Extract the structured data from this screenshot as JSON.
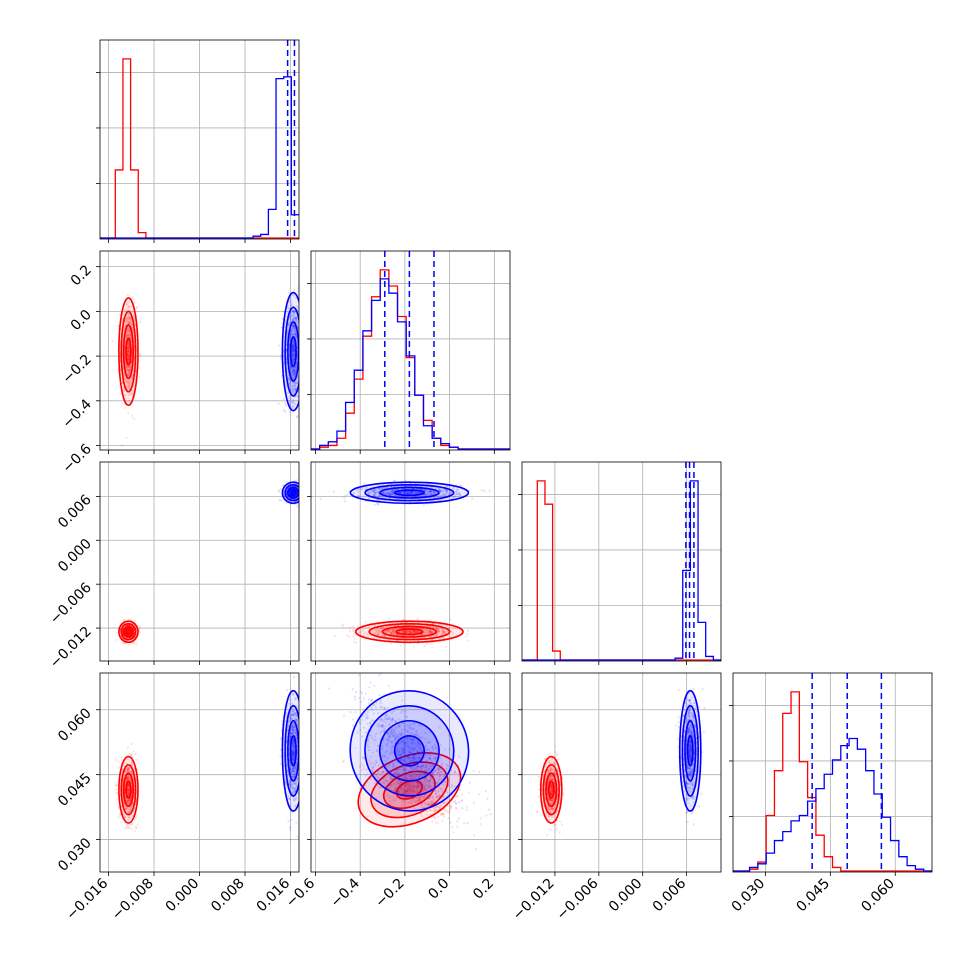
{
  "chart_data": {
    "type": "corner",
    "colors": {
      "series_a": "#ff0000",
      "series_b": "#0000ff",
      "grid": "#b0b0b0"
    },
    "params": [
      {
        "id": "p1",
        "range": [
          -0.0175,
          0.0175
        ],
        "ticks": [
          -0.016,
          -0.008,
          0.0,
          0.008,
          0.016
        ],
        "tick_labels": [
          "−0.016",
          "−0.008",
          "0.000",
          "0.008",
          "0.016"
        ]
      },
      {
        "id": "p2",
        "range": [
          -0.62,
          0.27
        ],
        "ticks": [
          -0.6,
          -0.4,
          -0.2,
          0.0,
          0.2
        ],
        "tick_labels": [
          "−0.6",
          "−0.4",
          "−0.2",
          "0.0",
          "0.2"
        ]
      },
      {
        "id": "p3",
        "range": [
          -0.0165,
          0.0107
        ],
        "ticks": [
          -0.012,
          -0.006,
          0.0,
          0.006
        ],
        "tick_labels": [
          "−0.012",
          "−0.006",
          "0.000",
          "0.006"
        ]
      },
      {
        "id": "p4",
        "range": [
          0.0225,
          0.0685
        ],
        "ticks": [
          0.03,
          0.045,
          0.06
        ],
        "tick_labels": [
          "0.030",
          "0.045",
          "0.060"
        ]
      }
    ],
    "series": [
      {
        "name": "",
        "color": "#ff0000",
        "center": [
          -0.0125,
          -0.18,
          -0.0125,
          0.0415
        ],
        "sd": [
          0.0007,
          0.1,
          0.0006,
          0.0032
        ]
      },
      {
        "name": "",
        "color": "#0000ff",
        "center": [
          0.0165,
          -0.18,
          0.0065,
          0.0505
        ],
        "sd": [
          0.0008,
          0.11,
          0.0006,
          0.0058
        ]
      }
    ],
    "hist1d": [
      {
        "param": "p1",
        "bins": [
          -0.0175,
          0.0175,
          26
        ],
        "series": [
          {
            "color": "#ff0000",
            "counts": [
              0,
              0,
              0.38,
              1,
              0.38,
              0.03,
              0,
              0,
              0,
              0,
              0,
              0,
              0,
              0,
              0,
              0,
              0,
              0,
              0,
              0,
              0,
              0,
              0,
              0,
              0,
              0
            ]
          },
          {
            "color": "#0000ff",
            "counts": [
              0,
              0,
              0,
              0,
              0,
              0,
              0,
              0,
              0,
              0,
              0,
              0,
              0,
              0,
              0,
              0,
              0,
              0,
              0,
              0,
              0.01,
              0.02,
              0.16,
              0.89,
              0.9,
              0.13
            ]
          }
        ],
        "quantile_lines": [
          0.0155,
          0.0167,
          0.0179
        ]
      },
      {
        "param": "p2",
        "bins": [
          -0.62,
          0.27,
          23
        ],
        "series": [
          {
            "color": "#ff0000",
            "counts": [
              0,
              0.01,
              0.02,
              0.06,
              0.2,
              0.39,
              0.63,
              0.85,
              1,
              0.91,
              0.74,
              0.51,
              0.3,
              0.16,
              0.06,
              0.02,
              0.01,
              0,
              0,
              0,
              0,
              0,
              0
            ]
          },
          {
            "color": "#0000ff",
            "counts": [
              0,
              0.02,
              0.04,
              0.1,
              0.26,
              0.44,
              0.66,
              0.83,
              0.95,
              0.87,
              0.71,
              0.52,
              0.3,
              0.13,
              0.06,
              0.03,
              0.01,
              0,
              0,
              0,
              0,
              0,
              0
            ]
          }
        ],
        "quantile_lines": [
          -0.29,
          -0.18,
          -0.07
        ]
      },
      {
        "param": "p3",
        "bins": [
          -0.0165,
          0.0107,
          26
        ],
        "series": [
          {
            "color": "#ff0000",
            "counts": [
              0,
              0,
              1,
              0.87,
              0.05,
              0,
              0,
              0,
              0,
              0,
              0,
              0,
              0,
              0,
              0,
              0,
              0,
              0,
              0,
              0,
              0,
              0,
              0,
              0,
              0,
              0
            ]
          },
          {
            "color": "#0000ff",
            "counts": [
              0,
              0,
              0,
              0,
              0,
              0,
              0,
              0,
              0,
              0,
              0,
              0,
              0,
              0,
              0,
              0,
              0,
              0,
              0,
              0,
              0.01,
              0.5,
              1,
              0.21,
              0.02,
              0
            ]
          }
        ],
        "quantile_lines": [
          0.0059,
          0.0064,
          0.007
        ]
      },
      {
        "param": "p4",
        "bins": [
          0.0225,
          0.0685,
          24
        ],
        "series": [
          {
            "color": "#ff0000",
            "counts": [
              0,
              0,
              0.01,
              0.05,
              0.31,
              0.56,
              0.88,
              1,
              0.61,
              0.41,
              0.2,
              0.08,
              0.02,
              0,
              0,
              0,
              0,
              0,
              0,
              0,
              0,
              0,
              0,
              0
            ]
          },
          {
            "color": "#0000ff",
            "counts": [
              0,
              0,
              0.02,
              0.04,
              0.1,
              0.17,
              0.22,
              0.28,
              0.31,
              0.39,
              0.46,
              0.54,
              0.62,
              0.7,
              0.74,
              0.68,
              0.56,
              0.43,
              0.3,
              0.17,
              0.08,
              0.03,
              0.01,
              0
            ]
          }
        ],
        "quantile_lines": [
          0.0408,
          0.0489,
          0.0568
        ]
      }
    ]
  }
}
